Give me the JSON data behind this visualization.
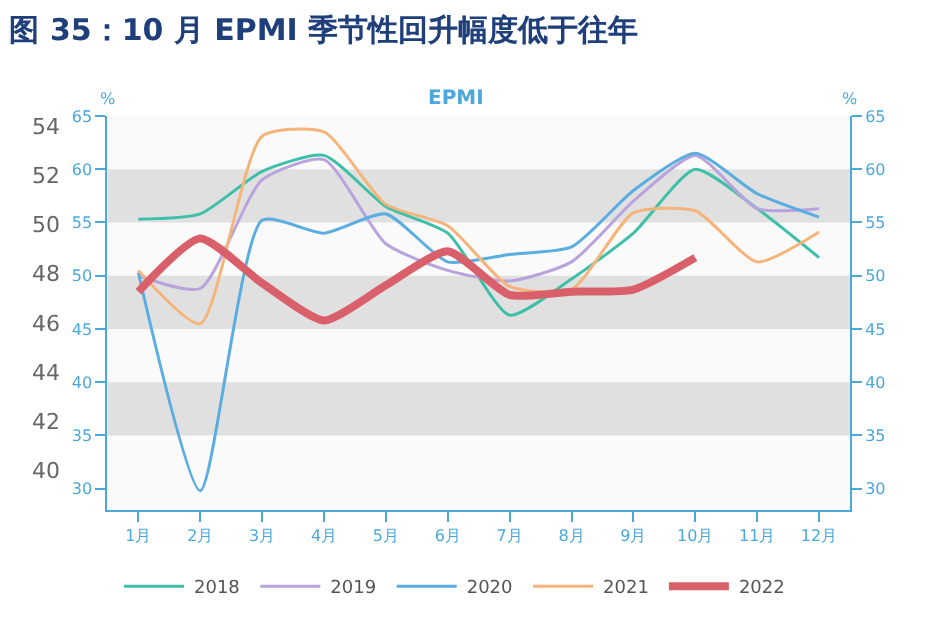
{
  "chart_data": {
    "type": "line",
    "title": "图 35：10 月 EPMI 季节性回升幅度低于往年",
    "subtitle": "EPMI",
    "categories": [
      "1月",
      "2月",
      "3月",
      "4月",
      "5月",
      "6月",
      "7月",
      "8月",
      "9月",
      "10月",
      "11月",
      "12月"
    ],
    "series": [
      {
        "name": "2018",
        "color": "#3dbfa8",
        "axis": "y2",
        "values": [
          55.3,
          55.8,
          59.8,
          61.3,
          56.5,
          54,
          46.3,
          49.7,
          54,
          60,
          56.3,
          51.7
        ]
      },
      {
        "name": "2019",
        "color": "#b9a3dc",
        "axis": "y2",
        "values": [
          50,
          48.8,
          59,
          60.9,
          53,
          50.5,
          49.5,
          51.3,
          57,
          61.3,
          56.3,
          56.3
        ]
      },
      {
        "name": "2020",
        "color": "#5aade0",
        "axis": "y2",
        "values": [
          50.3,
          29.8,
          55.2,
          54,
          55.8,
          51.3,
          52,
          52.7,
          58,
          61.5,
          57.7,
          55.5
        ]
      },
      {
        "name": "2021",
        "color": "#f5b47a",
        "axis": "y2",
        "values": [
          50.5,
          45.5,
          63.1,
          63.5,
          56.7,
          54.7,
          49,
          48.7,
          55.9,
          56.1,
          51.3,
          54.1
        ]
      },
      {
        "name": "2022",
        "color": "#d9606a",
        "axis": "y2",
        "values": [
          48.5,
          53.5,
          49.3,
          45.8,
          49.1,
          52.3,
          48.2,
          48.5,
          48.7,
          51.7,
          null,
          null
        ]
      }
    ],
    "ylim": [
      38.4,
      54.4
    ],
    "yticks": [
      40,
      42,
      44,
      46,
      48,
      50,
      52,
      54
    ],
    "y2lim": [
      28,
      65
    ],
    "y2ticks": [
      30,
      35,
      40,
      45,
      50,
      55,
      60,
      65
    ],
    "y2label": "%",
    "y3lim": [
      28,
      65
    ],
    "y3ticks": [
      30,
      35,
      40,
      45,
      50,
      55,
      60,
      65
    ],
    "y3label": "%",
    "bands": [
      {
        "axis": "y2",
        "from": 35,
        "to": 40,
        "color": "#e0e0e0"
      },
      {
        "axis": "y2",
        "from": 45,
        "to": 50,
        "color": "#e0e0e0"
      },
      {
        "axis": "y2",
        "from": 55,
        "to": 60,
        "color": "#e0e0e0"
      }
    ],
    "grid": false,
    "legend": "bottom"
  }
}
